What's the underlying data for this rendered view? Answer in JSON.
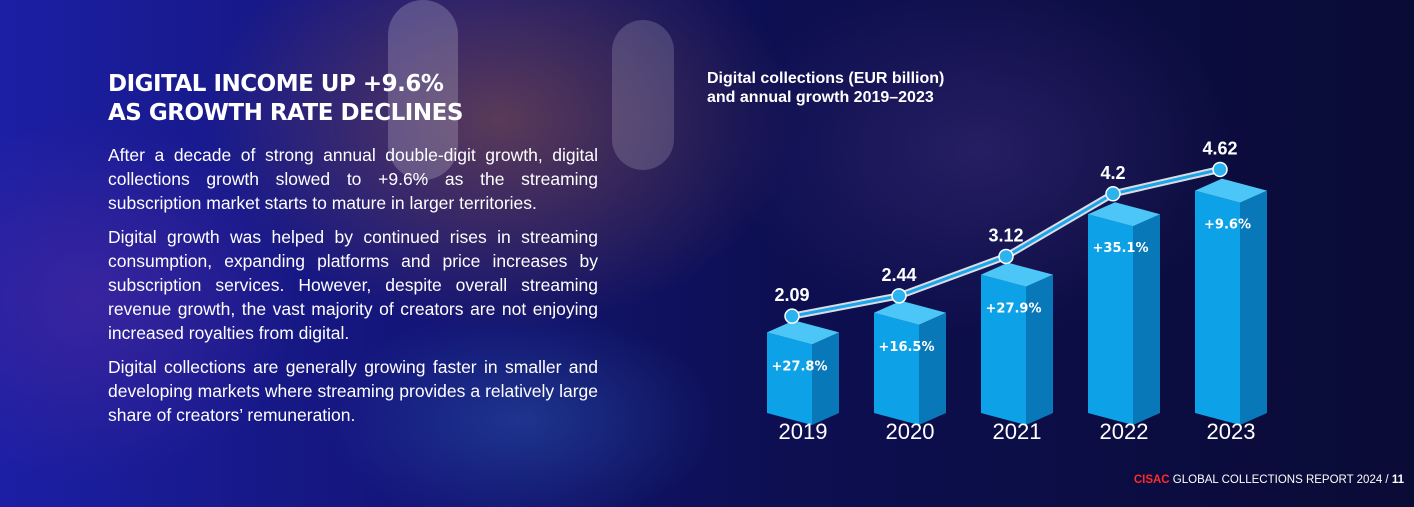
{
  "headline": {
    "line1": "DIGITAL INCOME UP +9.6%",
    "line2": "AS GROWTH RATE DECLINES"
  },
  "paragraphs": [
    "After a decade of strong annual double-digit growth, digital collections growth slowed to +9.6% as the streaming subscription market starts to mature in larger territories.",
    "Digital growth was helped by continued rises in streaming consumption, expanding platforms and price increases by subscription services. However, despite overall streaming revenue growth, the vast majority of creators are not enjoying increased royalties from digital.",
    "Digital collections are generally growing faster in smaller and developing markets where streaming provides a relatively large share of creators’ remuneration."
  ],
  "chart_title": {
    "bold1": "Digital collections",
    "rest1": " (EUR billion)",
    "line2": "and annual growth 2019–2023"
  },
  "chart_data": {
    "type": "bar",
    "categories": [
      "2019",
      "2020",
      "2021",
      "2022",
      "2023"
    ],
    "values": [
      2.09,
      2.44,
      3.12,
      4.2,
      4.62
    ],
    "value_labels": [
      "2.09",
      "2.44",
      "3.12",
      "4.2",
      "4.62"
    ],
    "growth_labels": [
      "+27.8%",
      "+16.5%",
      "+27.9%",
      "+35.1%",
      "+9.6%"
    ],
    "overlay": "line",
    "colors": {
      "bar_front": "#0da2e8",
      "bar_side": "#0878b8",
      "bar_top": "#4cc6f6",
      "line": "#1aa6ea",
      "marker": "#2bb3f0"
    }
  },
  "footer": {
    "brand": "CISAC",
    "text": " GLOBAL COLLECTIONS REPORT 2024 / ",
    "page": "11"
  }
}
